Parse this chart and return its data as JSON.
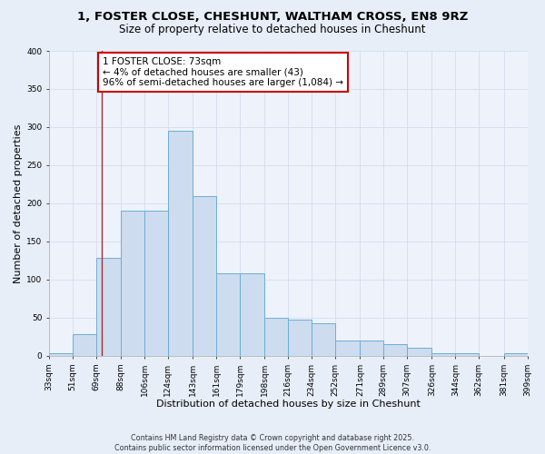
{
  "title1": "1, FOSTER CLOSE, CHESHUNT, WALTHAM CROSS, EN8 9RZ",
  "title2": "Size of property relative to detached houses in Cheshunt",
  "xlabel": "Distribution of detached houses by size in Cheshunt",
  "ylabel": "Number of detached properties",
  "bar_left_edges": [
    33,
    51,
    69,
    88,
    106,
    124,
    143,
    161,
    179,
    198,
    216,
    234,
    252,
    271,
    289,
    307,
    326,
    344,
    362,
    381
  ],
  "bar_heights": [
    3,
    28,
    128,
    190,
    190,
    295,
    210,
    108,
    108,
    50,
    47,
    43,
    20,
    20,
    15,
    10,
    3,
    3,
    0,
    3
  ],
  "bar_widths": [
    18,
    18,
    19,
    18,
    18,
    19,
    18,
    18,
    19,
    18,
    18,
    18,
    19,
    18,
    18,
    19,
    18,
    18,
    19,
    18
  ],
  "tick_labels": [
    "33sqm",
    "51sqm",
    "69sqm",
    "88sqm",
    "106sqm",
    "124sqm",
    "143sqm",
    "161sqm",
    "179sqm",
    "198sqm",
    "216sqm",
    "234sqm",
    "252sqm",
    "271sqm",
    "289sqm",
    "307sqm",
    "326sqm",
    "344sqm",
    "362sqm",
    "381sqm",
    "399sqm"
  ],
  "tick_positions": [
    33,
    51,
    69,
    88,
    106,
    124,
    143,
    161,
    179,
    198,
    216,
    234,
    252,
    271,
    289,
    307,
    326,
    344,
    362,
    381,
    399
  ],
  "bar_color": "#cddcef",
  "bar_edge_color": "#6baed6",
  "red_line_x": 73,
  "annotation_text": "1 FOSTER CLOSE: 73sqm\n← 4% of detached houses are smaller (43)\n96% of semi-detached houses are larger (1,084) →",
  "annotation_box_color": "#ffffff",
  "annotation_box_edge_color": "#cc0000",
  "ylim": [
    0,
    400
  ],
  "yticks": [
    0,
    50,
    100,
    150,
    200,
    250,
    300,
    350,
    400
  ],
  "xlim": [
    33,
    399
  ],
  "bg_color": "#e8eef8",
  "plot_bg_color": "#eef2fb",
  "grid_color": "#d0d8e8",
  "footer_text": "Contains HM Land Registry data © Crown copyright and database right 2025.\nContains public sector information licensed under the Open Government Licence v3.0.",
  "title1_fontsize": 9.5,
  "title2_fontsize": 8.5,
  "xlabel_fontsize": 8,
  "ylabel_fontsize": 8,
  "tick_fontsize": 6.5,
  "annotation_fontsize": 7.5,
  "footer_fontsize": 5.8
}
